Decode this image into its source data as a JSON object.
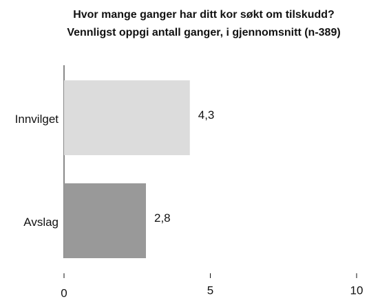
{
  "chart_data": {
    "type": "barh",
    "title": [
      "Hvor mange ganger har ditt kor søkt om tilskudd?",
      "Vennligst oppgi antall ganger, i gjennomsnitt (n-389)"
    ],
    "categories": [
      "Innvilget",
      "Avslag"
    ],
    "values": [
      4.3,
      2.8
    ],
    "value_labels": [
      "4,3",
      "2,8"
    ],
    "colors": [
      "#dcdcdc",
      "#999999"
    ],
    "xlim": [
      0,
      10
    ],
    "xticks": [
      0,
      5,
      10
    ],
    "grid": false
  }
}
